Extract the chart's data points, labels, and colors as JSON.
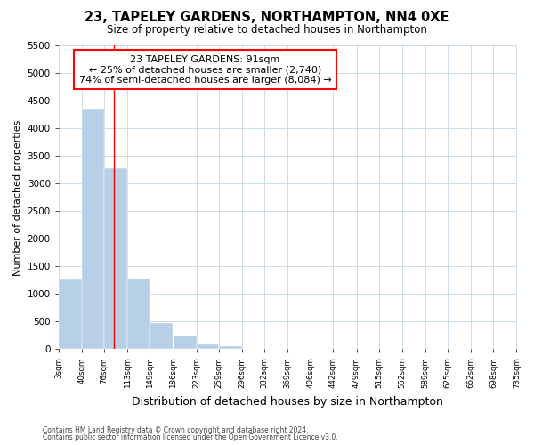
{
  "title": "23, TAPELEY GARDENS, NORTHAMPTON, NN4 0XE",
  "subtitle": "Size of property relative to detached houses in Northampton",
  "xlabel": "Distribution of detached houses by size in Northampton",
  "ylabel": "Number of detached properties",
  "bar_color": "#b8cfe8",
  "bins": [
    "3sqm",
    "40sqm",
    "76sqm",
    "113sqm",
    "149sqm",
    "186sqm",
    "223sqm",
    "259sqm",
    "296sqm",
    "332sqm",
    "369sqm",
    "406sqm",
    "442sqm",
    "479sqm",
    "515sqm",
    "552sqm",
    "589sqm",
    "625sqm",
    "662sqm",
    "698sqm",
    "735sqm"
  ],
  "bin_edges": [
    3,
    40,
    76,
    113,
    149,
    186,
    223,
    259,
    296,
    332,
    369,
    406,
    442,
    479,
    515,
    552,
    589,
    625,
    662,
    698,
    735
  ],
  "counts": [
    1270,
    4340,
    3280,
    1280,
    480,
    240,
    90,
    60,
    0,
    0,
    0,
    0,
    0,
    0,
    0,
    0,
    0,
    0,
    0,
    0
  ],
  "ylim": [
    0,
    5500
  ],
  "yticks": [
    0,
    500,
    1000,
    1500,
    2000,
    2500,
    3000,
    3500,
    4000,
    4500,
    5000,
    5500
  ],
  "red_line_x": 91,
  "annotation_title": "23 TAPELEY GARDENS: 91sqm",
  "annotation_line1": "← 25% of detached houses are smaller (2,740)",
  "annotation_line2": "74% of semi-detached houses are larger (8,084) →",
  "footer1": "Contains HM Land Registry data © Crown copyright and database right 2024.",
  "footer2": "Contains public sector information licensed under the Open Government Licence v3.0.",
  "background_color": "#ffffff",
  "grid_color": "#ccdce8"
}
